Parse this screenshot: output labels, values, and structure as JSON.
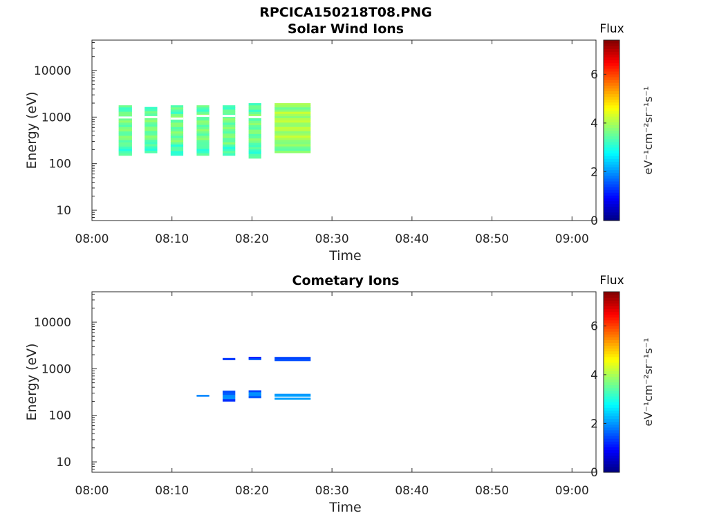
{
  "figure_title": "RPCICA150218T08.PNG",
  "colors": {
    "colormap": [
      "#000080",
      "#0000ff",
      "#0080ff",
      "#00ffff",
      "#80ff80",
      "#ffff00",
      "#ff8000",
      "#ff0000",
      "#800000"
    ],
    "axis": "#262626"
  },
  "chart_data": [
    {
      "type": "heatmap",
      "title": "Solar Wind Ions",
      "xlabel": "Time",
      "ylabel": "Energy (eV)",
      "y_scale": "log",
      "xlim": [
        "08:00",
        "09:03"
      ],
      "ylim": [
        6,
        45000
      ],
      "x_ticks": [
        "08:00",
        "08:10",
        "08:20",
        "08:30",
        "08:40",
        "08:50",
        "09:00"
      ],
      "y_ticks": [
        "10",
        "100",
        "1000",
        "10000"
      ],
      "colorbar": {
        "title": "Flux",
        "label": "eV⁻¹cm⁻²sr⁻¹s⁻¹",
        "range": [
          0,
          7.4
        ],
        "ticks": [
          "0",
          "2",
          "4",
          "6"
        ]
      },
      "blocks": [
        {
          "t_start": "08:03:20",
          "t_end": "08:05:00",
          "e_min": 150,
          "e_max": 1800,
          "flux": 3.6,
          "gap": 980
        },
        {
          "t_start": "08:06:35",
          "t_end": "08:08:10",
          "e_min": 170,
          "e_max": 1650,
          "flux": 3.6,
          "gap": 1000
        },
        {
          "t_start": "08:09:50",
          "t_end": "08:11:25",
          "e_min": 150,
          "e_max": 1800,
          "flux": 3.6,
          "gap": 930
        },
        {
          "t_start": "08:13:05",
          "t_end": "08:14:40",
          "e_min": 150,
          "e_max": 1800,
          "flux": 3.6,
          "gap": 1060
        },
        {
          "t_start": "08:16:20",
          "t_end": "08:17:55",
          "e_min": 150,
          "e_max": 1800,
          "flux": 3.6,
          "gap": 1060
        },
        {
          "t_start": "08:19:35",
          "t_end": "08:21:10",
          "e_min": 130,
          "e_max": 2000,
          "flux": 3.6,
          "gap": 1000
        },
        {
          "t_start": "08:22:50",
          "t_end": "08:27:20",
          "e_min": 170,
          "e_max": 2000,
          "flux": 4.0,
          "gap": null
        }
      ]
    },
    {
      "type": "heatmap",
      "title": "Cometary Ions",
      "xlabel": "Time",
      "ylabel": "Energy (eV)",
      "y_scale": "log",
      "xlim": [
        "08:00",
        "09:03"
      ],
      "ylim": [
        6,
        45000
      ],
      "x_ticks": [
        "08:00",
        "08:10",
        "08:20",
        "08:30",
        "08:40",
        "08:50",
        "09:00"
      ],
      "y_ticks": [
        "10",
        "100",
        "1000",
        "10000"
      ],
      "colorbar": {
        "title": "Flux",
        "label": "eV⁻¹cm⁻²sr⁻¹s⁻¹",
        "range": [
          0,
          7.4
        ],
        "ticks": [
          "0",
          "2",
          "4",
          "6"
        ]
      },
      "blocks": [
        {
          "t_start": "08:13:05",
          "t_end": "08:14:40",
          "e_min": 255,
          "e_max": 275,
          "flux": 1.9
        },
        {
          "t_start": "08:16:20",
          "t_end": "08:17:55",
          "e_min": 200,
          "e_max": 340,
          "flux": 1.8
        },
        {
          "t_start": "08:16:20",
          "t_end": "08:17:55",
          "e_min": 1550,
          "e_max": 1700,
          "flux": 1.6
        },
        {
          "t_start": "08:19:35",
          "t_end": "08:21:10",
          "e_min": 235,
          "e_max": 345,
          "flux": 1.8
        },
        {
          "t_start": "08:19:35",
          "t_end": "08:21:10",
          "e_min": 1550,
          "e_max": 1800,
          "flux": 1.4
        },
        {
          "t_start": "08:22:50",
          "t_end": "08:27:20",
          "e_min": 220,
          "e_max": 240,
          "flux": 2.0
        },
        {
          "t_start": "08:22:50",
          "t_end": "08:27:20",
          "e_min": 255,
          "e_max": 290,
          "flux": 2.0
        },
        {
          "t_start": "08:22:50",
          "t_end": "08:27:20",
          "e_min": 1480,
          "e_max": 1800,
          "flux": 1.4
        }
      ]
    }
  ]
}
